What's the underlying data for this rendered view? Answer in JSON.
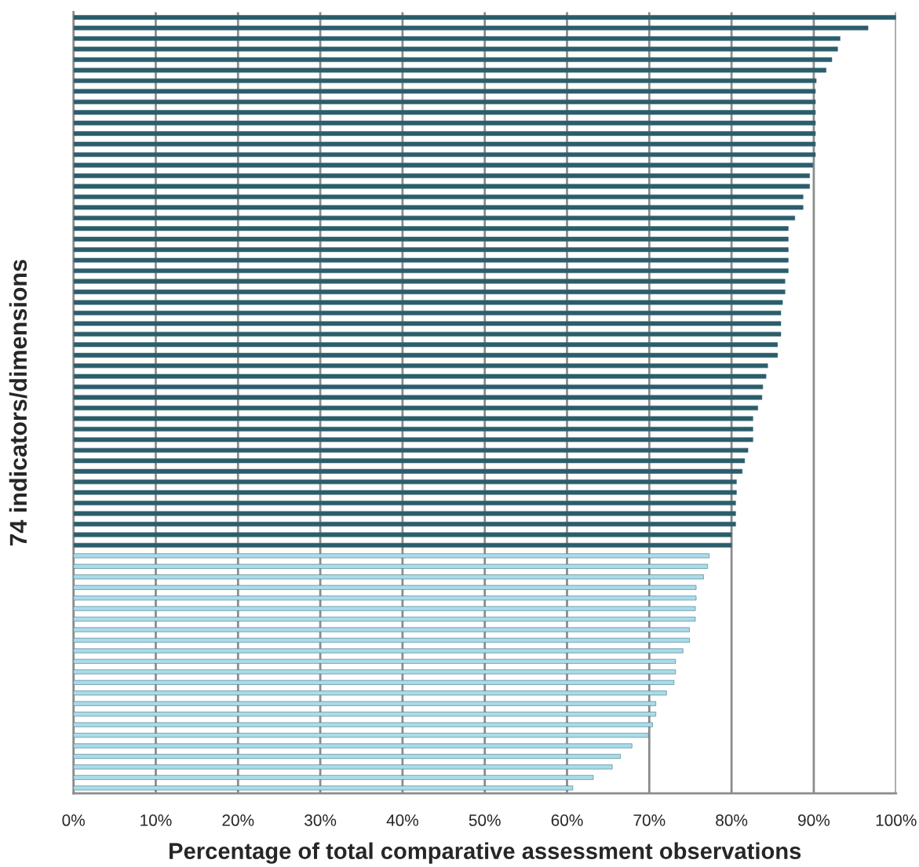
{
  "chart_data": {
    "type": "bar",
    "orientation": "horizontal",
    "xlabel": "Percentage of total comparative assessment observations",
    "ylabel": "74 indicators/dimensions",
    "categories": [
      null,
      null,
      null,
      null,
      null,
      null,
      null,
      null,
      null,
      null,
      null,
      null,
      null,
      null,
      null,
      null,
      null,
      null,
      null,
      null,
      null,
      null,
      null,
      null,
      null,
      null,
      null,
      null,
      null,
      null,
      null,
      null,
      null,
      null,
      null,
      null,
      null,
      null,
      null,
      null,
      null,
      null,
      null,
      null,
      null,
      null,
      null,
      null,
      null,
      null,
      null,
      null,
      null,
      null,
      null,
      null,
      null,
      null,
      null,
      null,
      null,
      null,
      null,
      null,
      null,
      null,
      null,
      null,
      null,
      null,
      null,
      null,
      null,
      null
    ],
    "values": [
      100,
      96.6,
      93.2,
      92.9,
      92.2,
      91.5,
      90.3,
      90.2,
      90.2,
      90.2,
      90.2,
      90.2,
      90.2,
      90.2,
      89.9,
      89.5,
      89.5,
      88.7,
      88.7,
      87.7,
      86.9,
      86.9,
      86.9,
      86.9,
      86.9,
      86.5,
      86.5,
      86.2,
      86.0,
      86.0,
      86.0,
      85.6,
      85.6,
      84.4,
      84.2,
      83.8,
      83.7,
      83.2,
      82.6,
      82.6,
      82.6,
      82.0,
      81.6,
      81.3,
      80.6,
      80.6,
      80.5,
      80.5,
      80.5,
      80.0,
      80.0,
      77.3,
      77.1,
      76.6,
      75.7,
      75.7,
      75.6,
      75.6,
      74.9,
      74.9,
      74.1,
      73.2,
      73.2,
      73.0,
      72.1,
      70.8,
      70.8,
      70.4,
      69.9,
      67.9,
      66.5,
      65.5,
      63.2,
      60.7
    ],
    "colors": [
      "#2b5d6b",
      "#2b5d6b",
      "#2b5d6b",
      "#2b5d6b",
      "#2b5d6b",
      "#2b5d6b",
      "#2b5d6b",
      "#2b5d6b",
      "#2b5d6b",
      "#2b5d6b",
      "#2b5d6b",
      "#2b5d6b",
      "#2b5d6b",
      "#2b5d6b",
      "#2b5d6b",
      "#2b5d6b",
      "#2b5d6b",
      "#2b5d6b",
      "#2b5d6b",
      "#2b5d6b",
      "#2b5d6b",
      "#2b5d6b",
      "#2b5d6b",
      "#2b5d6b",
      "#2b5d6b",
      "#2b5d6b",
      "#2b5d6b",
      "#2b5d6b",
      "#2b5d6b",
      "#2b5d6b",
      "#2b5d6b",
      "#2b5d6b",
      "#2b5d6b",
      "#2b5d6b",
      "#2b5d6b",
      "#2b5d6b",
      "#2b5d6b",
      "#2b5d6b",
      "#2b5d6b",
      "#2b5d6b",
      "#2b5d6b",
      "#2b5d6b",
      "#2b5d6b",
      "#2b5d6b",
      "#2b5d6b",
      "#2b5d6b",
      "#2b5d6b",
      "#2b5d6b",
      "#2b5d6b",
      "#2b5d6b",
      "#2b5d6b",
      "#a9dcea",
      "#a9dcea",
      "#a9dcea",
      "#a9dcea",
      "#a9dcea",
      "#a9dcea",
      "#a9dcea",
      "#a9dcea",
      "#a9dcea",
      "#a9dcea",
      "#a9dcea",
      "#a9dcea",
      "#a9dcea",
      "#a9dcea",
      "#a9dcea",
      "#a9dcea",
      "#a9dcea",
      "#a9dcea",
      "#a9dcea",
      "#a9dcea",
      "#a9dcea",
      "#a9dcea",
      "#a9dcea"
    ],
    "xlim": [
      0,
      100
    ],
    "xticks": [
      {
        "value": 0,
        "label": "0%"
      },
      {
        "value": 10,
        "label": "10%"
      },
      {
        "value": 20,
        "label": "20%"
      },
      {
        "value": 30,
        "label": "30%"
      },
      {
        "value": 40,
        "label": "40%"
      },
      {
        "value": 50,
        "label": "50%"
      },
      {
        "value": 60,
        "label": "60%"
      },
      {
        "value": 70,
        "label": "70%"
      },
      {
        "value": 80,
        "label": "80%"
      },
      {
        "value": 90,
        "label": "90%"
      },
      {
        "value": 100,
        "label": "100%"
      }
    ],
    "grid": "x"
  }
}
